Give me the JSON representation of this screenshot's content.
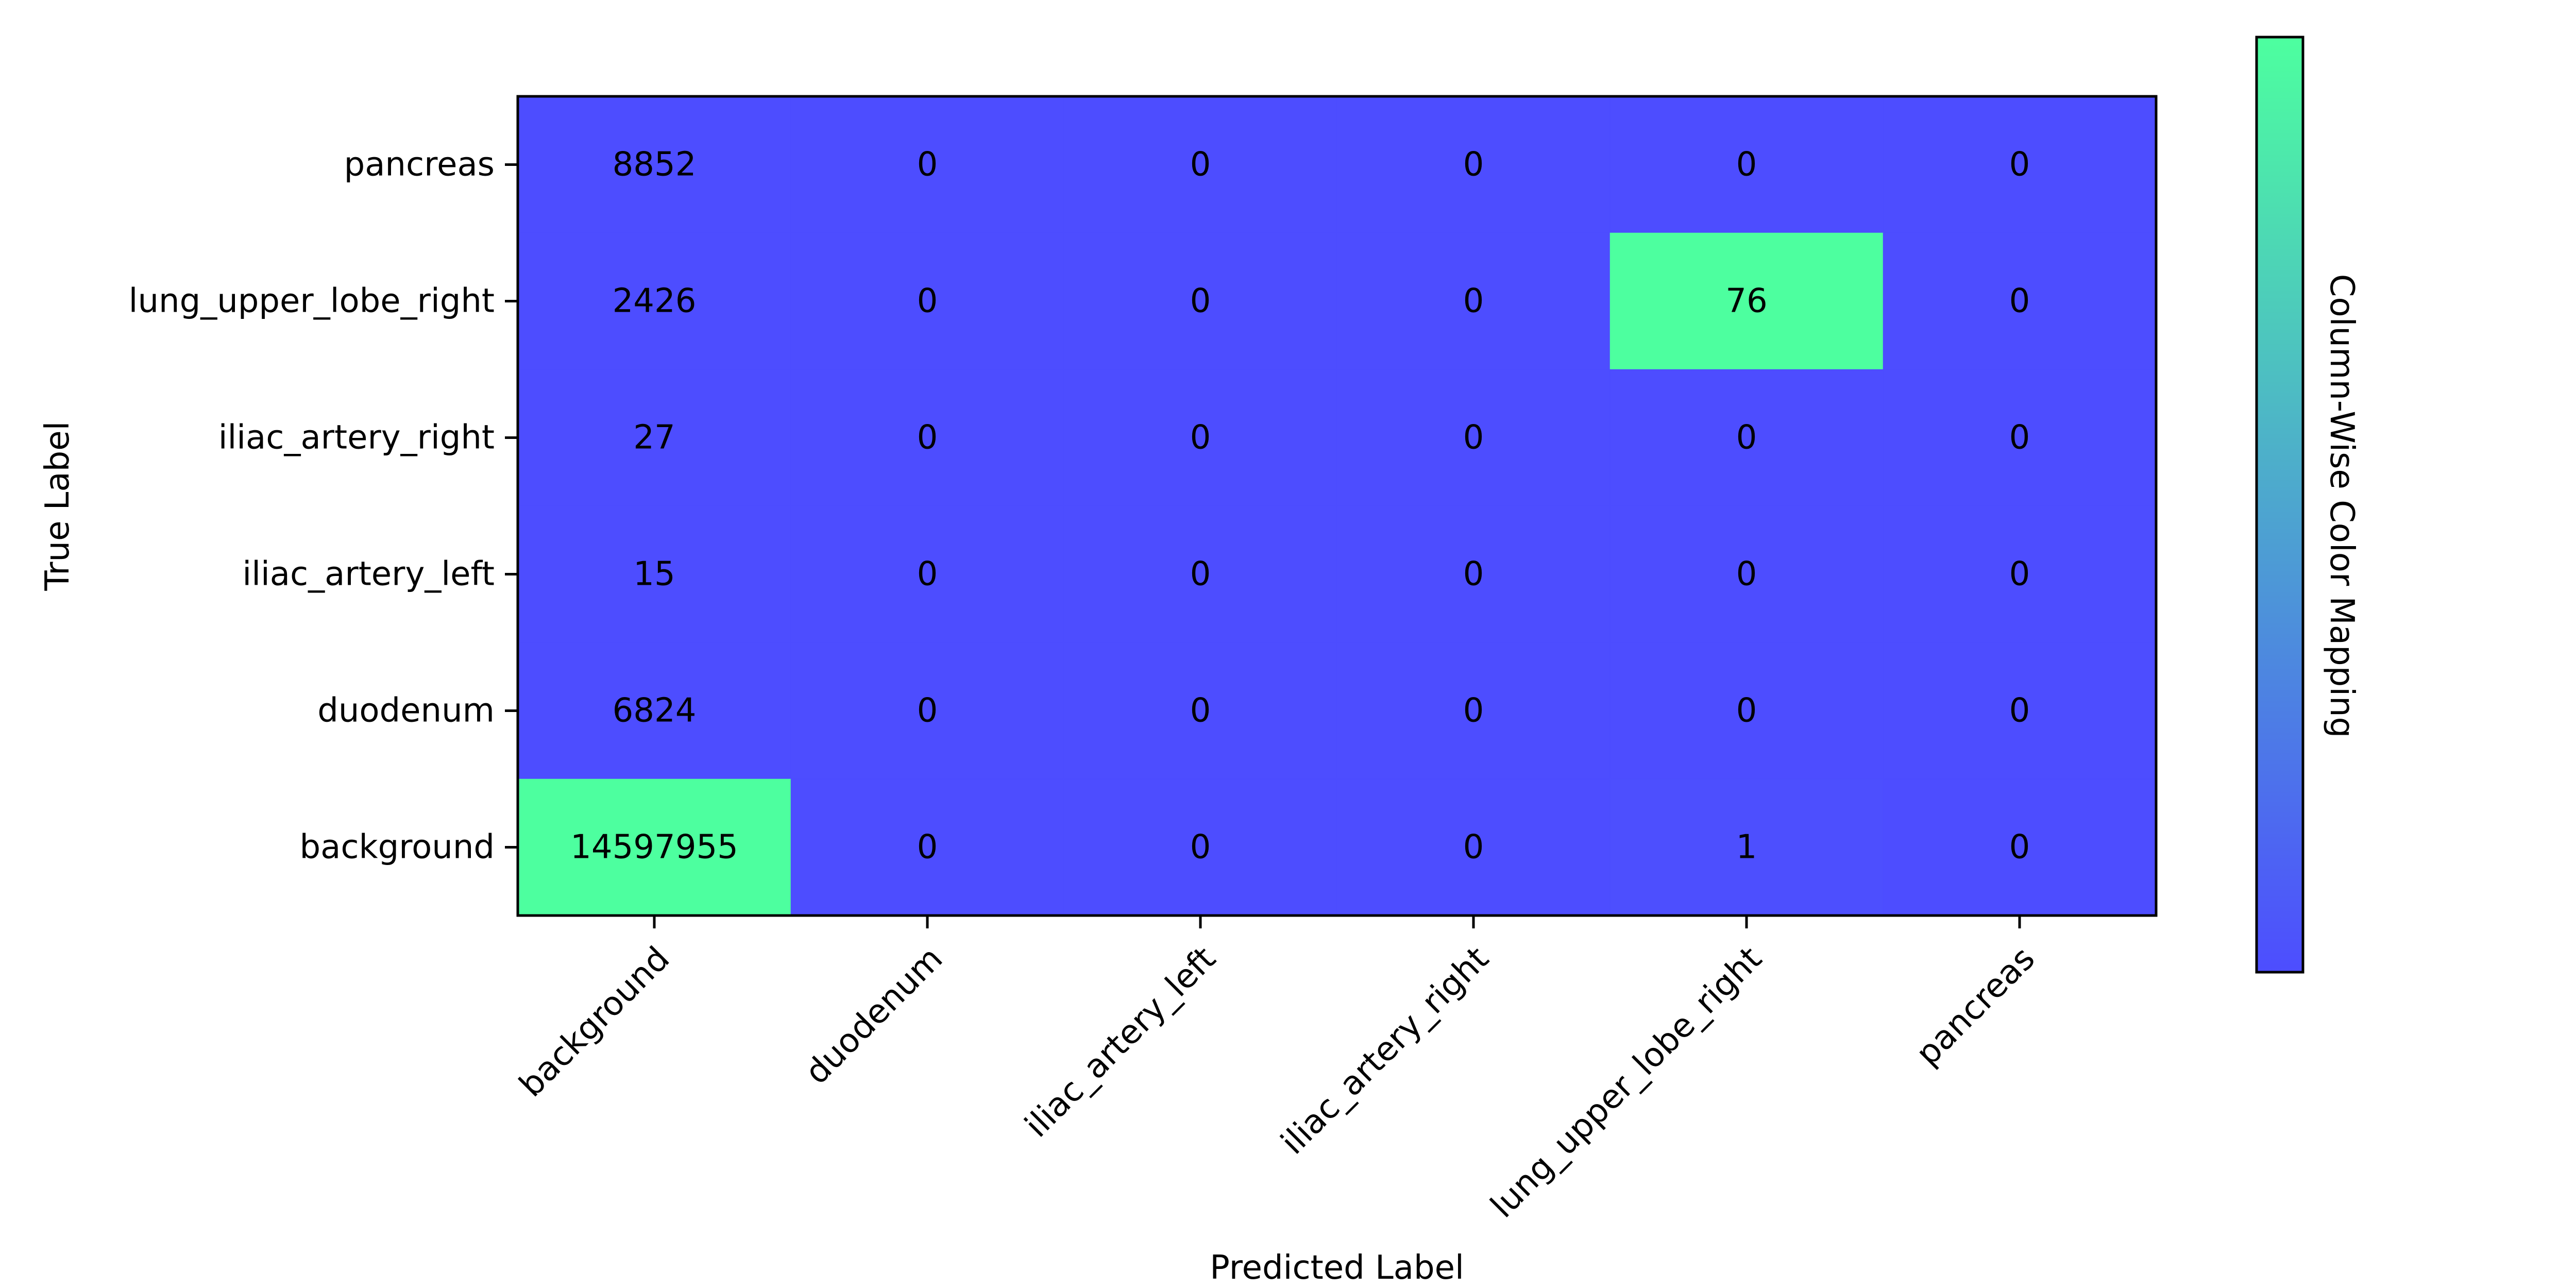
{
  "chart_data": {
    "type": "heatmap",
    "x_categories": [
      "background",
      "duodenum",
      "iliac_artery_left",
      "iliac_artery_right",
      "lung_upper_lobe_right",
      "pancreas"
    ],
    "y_categories": [
      "pancreas",
      "lung_upper_lobe_right",
      "iliac_artery_right",
      "iliac_artery_left",
      "duodenum",
      "background"
    ],
    "values": [
      [
        8852,
        0,
        0,
        0,
        0,
        0
      ],
      [
        2426,
        0,
        0,
        0,
        76,
        0
      ],
      [
        27,
        0,
        0,
        0,
        0,
        0
      ],
      [
        15,
        0,
        0,
        0,
        0,
        0
      ],
      [
        6824,
        0,
        0,
        0,
        0,
        0
      ],
      [
        14597955,
        0,
        0,
        0,
        1,
        0
      ]
    ],
    "xlabel": "Predicted Label",
    "ylabel": "True Label",
    "colorbar_label": "Column-Wise Color Mapping",
    "color_normalization": "column-wise",
    "colormap": {
      "low": "#4d4dff",
      "high": "#4dff9f"
    }
  }
}
